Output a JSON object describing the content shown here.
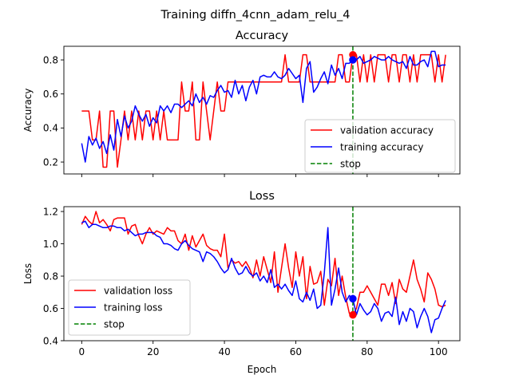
{
  "suptitle": "Training diffn_4cnn_adam_relu_4",
  "chart_data": [
    {
      "type": "line",
      "title": "Accuracy",
      "xlabel": "",
      "ylabel": "Accuracy",
      "xlim": [
        -5,
        106
      ],
      "ylim": [
        0.13,
        0.88
      ],
      "xticks": [
        0,
        20,
        40,
        60,
        80,
        100
      ],
      "xtick_labels_visible": false,
      "yticks": [
        0.2,
        0.4,
        0.6,
        0.8
      ],
      "ytick_labels": [
        "0.2",
        "0.4",
        "0.6",
        "0.8"
      ],
      "legend_position": "lower-right",
      "stop_epoch": 76,
      "series": [
        {
          "name": "validation accuracy",
          "color": "#ff0000",
          "style": "solid",
          "values": [
            0.5,
            0.5,
            0.5,
            0.33,
            0.33,
            0.5,
            0.17,
            0.17,
            0.5,
            0.5,
            0.17,
            0.33,
            0.5,
            0.33,
            0.5,
            0.33,
            0.5,
            0.33,
            0.5,
            0.5,
            0.33,
            0.5,
            0.33,
            0.5,
            0.33,
            0.33,
            0.33,
            0.33,
            0.67,
            0.5,
            0.5,
            0.67,
            0.33,
            0.33,
            0.67,
            0.5,
            0.33,
            0.5,
            0.67,
            0.5,
            0.5,
            0.67,
            0.67,
            0.67,
            0.67,
            0.67,
            0.67,
            0.67,
            0.67,
            0.67,
            0.67,
            0.67,
            0.67,
            0.67,
            0.67,
            0.67,
            0.67,
            0.83,
            0.67,
            0.67,
            0.67,
            0.67,
            0.83,
            0.83,
            0.67,
            0.67,
            0.67,
            0.67,
            0.67,
            0.67,
            0.67,
            0.67,
            0.83,
            0.83,
            0.67,
            0.67,
            0.83,
            0.83,
            0.67,
            0.83,
            0.67,
            0.83,
            0.67,
            0.83,
            0.83,
            0.83,
            0.67,
            0.83,
            0.83,
            0.67,
            0.83,
            0.83,
            0.67,
            0.83,
            0.67,
            0.83,
            0.83,
            0.83,
            0.83,
            0.67,
            0.83,
            0.67,
            0.83
          ]
        },
        {
          "name": "training accuracy",
          "color": "#0000ff",
          "style": "solid",
          "values": [
            0.31,
            0.2,
            0.35,
            0.3,
            0.34,
            0.28,
            0.32,
            0.25,
            0.36,
            0.27,
            0.45,
            0.35,
            0.47,
            0.4,
            0.44,
            0.53,
            0.48,
            0.44,
            0.48,
            0.41,
            0.46,
            0.43,
            0.53,
            0.5,
            0.53,
            0.49,
            0.54,
            0.54,
            0.52,
            0.54,
            0.56,
            0.53,
            0.6,
            0.55,
            0.58,
            0.54,
            0.59,
            0.58,
            0.62,
            0.65,
            0.61,
            0.62,
            0.58,
            0.68,
            0.6,
            0.65,
            0.56,
            0.64,
            0.68,
            0.6,
            0.7,
            0.71,
            0.7,
            0.7,
            0.73,
            0.7,
            0.69,
            0.71,
            0.75,
            0.72,
            0.69,
            0.71,
            0.55,
            0.75,
            0.79,
            0.61,
            0.64,
            0.69,
            0.73,
            0.66,
            0.77,
            0.71,
            0.75,
            0.69,
            0.78,
            0.78,
            0.8,
            0.8,
            0.82,
            0.78,
            0.79,
            0.8,
            0.82,
            0.81,
            0.8,
            0.8,
            0.82,
            0.8,
            0.79,
            0.78,
            0.79,
            0.75,
            0.82,
            0.77,
            0.77,
            0.79,
            0.8,
            0.76,
            0.85,
            0.85,
            0.76,
            0.77,
            0.77
          ]
        },
        {
          "name": "stop",
          "color": "#008000",
          "style": "dashed"
        }
      ]
    },
    {
      "type": "line",
      "title": "Loss",
      "xlabel": "Epoch",
      "ylabel": "Loss",
      "xlim": [
        -5,
        106
      ],
      "ylim": [
        0.4,
        1.23
      ],
      "xticks": [
        0,
        20,
        40,
        60,
        80,
        100
      ],
      "xtick_labels": [
        "0",
        "20",
        "40",
        "60",
        "80",
        "100"
      ],
      "yticks": [
        0.4,
        0.6,
        0.8,
        1.0,
        1.2
      ],
      "ytick_labels": [
        "0.4",
        "0.6",
        "0.8",
        "1.0",
        "1.2"
      ],
      "legend_position": "lower-left",
      "stop_epoch": 76,
      "series": [
        {
          "name": "validation loss",
          "color": "#ff0000",
          "style": "solid",
          "values": [
            1.12,
            1.17,
            1.14,
            1.12,
            1.2,
            1.13,
            1.15,
            1.12,
            1.08,
            1.15,
            1.16,
            1.16,
            1.16,
            1.06,
            1.11,
            1.12,
            1.05,
            1.0,
            1.06,
            1.1,
            1.06,
            1.08,
            1.07,
            1.06,
            1.1,
            1.08,
            1.08,
            1.02,
            1.0,
            1.06,
            0.96,
            1.05,
            0.98,
            1.02,
            1.06,
            0.99,
            0.97,
            0.96,
            0.96,
            0.92,
            1.06,
            0.85,
            0.9,
            0.88,
            0.89,
            0.86,
            0.89,
            0.85,
            0.79,
            0.9,
            0.8,
            0.92,
            0.84,
            0.76,
            0.95,
            0.7,
            0.85,
            1.0,
            0.85,
            0.73,
            0.95,
            0.8,
            0.92,
            0.66,
            0.86,
            0.75,
            0.76,
            0.83,
            0.62,
            0.78,
            0.74,
            0.91,
            0.68,
            0.8,
            0.67,
            0.57,
            0.56,
            0.6,
            0.7,
            0.7,
            0.74,
            0.7,
            0.66,
            0.62,
            0.75,
            0.75,
            0.68,
            0.76,
            0.63,
            0.78,
            0.72,
            0.7,
            0.8,
            0.9,
            0.78,
            0.72,
            0.64,
            0.82,
            0.78,
            0.72,
            0.62,
            0.61,
            0.62
          ]
        },
        {
          "name": "training loss",
          "color": "#0000ff",
          "style": "solid",
          "values": [
            1.13,
            1.14,
            1.1,
            1.12,
            1.12,
            1.11,
            1.1,
            1.1,
            1.11,
            1.11,
            1.1,
            1.1,
            1.08,
            1.09,
            1.07,
            1.05,
            1.06,
            1.06,
            1.07,
            1.07,
            1.07,
            1.05,
            1.04,
            1.0,
            1.0,
            0.99,
            0.97,
            0.96,
            1.0,
            1.02,
            0.99,
            0.97,
            0.96,
            0.95,
            0.89,
            0.95,
            0.94,
            0.92,
            0.89,
            0.85,
            0.82,
            0.84,
            0.91,
            0.85,
            0.81,
            0.82,
            0.86,
            0.82,
            0.8,
            0.82,
            0.77,
            0.8,
            0.76,
            0.84,
            0.73,
            0.75,
            0.72,
            0.75,
            0.71,
            0.68,
            0.77,
            0.66,
            0.64,
            0.7,
            0.65,
            0.72,
            0.6,
            0.62,
            0.82,
            1.1,
            0.62,
            0.72,
            0.85,
            0.7,
            0.64,
            0.68,
            0.66,
            0.56,
            0.63,
            0.59,
            0.56,
            0.58,
            0.63,
            0.6,
            0.52,
            0.57,
            0.58,
            0.55,
            0.67,
            0.5,
            0.58,
            0.52,
            0.6,
            0.58,
            0.48,
            0.55,
            0.6,
            0.55,
            0.45,
            0.53,
            0.54,
            0.6,
            0.65
          ]
        },
        {
          "name": "stop",
          "color": "#008000",
          "style": "dashed"
        }
      ]
    }
  ]
}
